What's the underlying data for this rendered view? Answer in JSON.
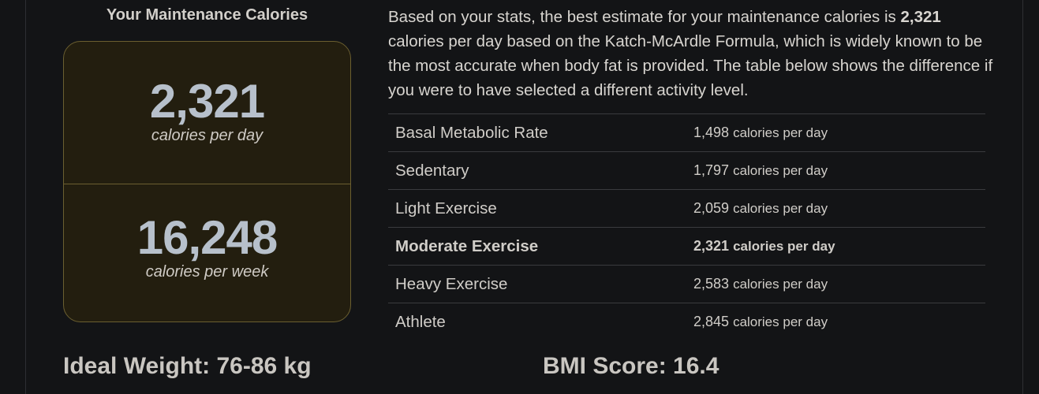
{
  "maintenance": {
    "title": "Your Maintenance Calories",
    "daily_value": "2,321",
    "daily_unit": "calories per day",
    "weekly_value": "16,248",
    "weekly_unit": "calories per week"
  },
  "description": {
    "before": "Based on your stats, the best estimate for your maintenance calories is ",
    "highlight": "2,321",
    "after": " calories per day based on the Katch-McArdle Formula, which is widely known to be the most accurate when body fat is provided. The table below shows the difference if you were to have selected a different activity level."
  },
  "activity_table": [
    {
      "level": "Basal Metabolic Rate",
      "calories": "1,498",
      "unit": "calories per day"
    },
    {
      "level": "Sedentary",
      "calories": "1,797",
      "unit": "calories per day"
    },
    {
      "level": "Light Exercise",
      "calories": "2,059",
      "unit": "calories per day"
    },
    {
      "level": "Moderate Exercise",
      "calories": "2,321",
      "unit": "calories per day",
      "selected": true
    },
    {
      "level": "Heavy Exercise",
      "calories": "2,583",
      "unit": "calories per day"
    },
    {
      "level": "Athlete",
      "calories": "2,845",
      "unit": "calories per day"
    }
  ],
  "ideal_weight": "Ideal Weight: 76-86 kg",
  "bmi": "BMI Score: 16.4",
  "colors": {
    "background": "#131416",
    "box_bg": "#231e0f",
    "box_border": "#6b5f30",
    "big_number": "#b7c0cb"
  }
}
